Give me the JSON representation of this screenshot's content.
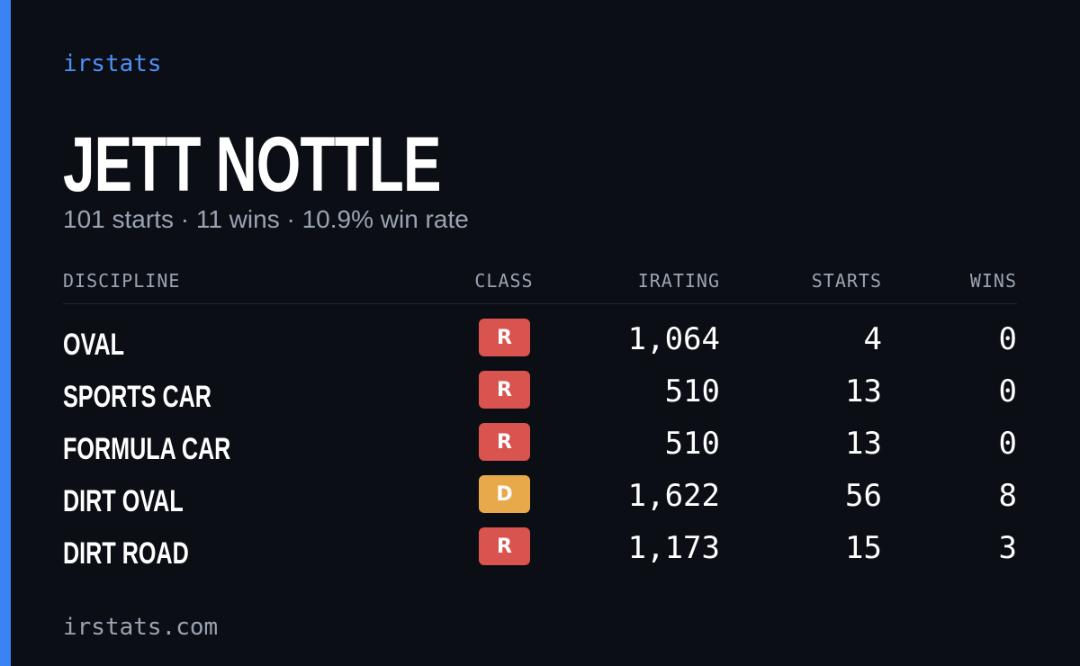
{
  "brand": "irstats",
  "name": "JETT NOTTLE",
  "subtitle": "101 starts · 11 wins · 10.9% win rate",
  "table": {
    "headers": [
      "DISCIPLINE",
      "CLASS",
      "IRATING",
      "STARTS",
      "WINS"
    ],
    "rows": [
      {
        "discipline": "OVAL",
        "class": "R",
        "class_color": "#d9534f",
        "irating": "1,064",
        "starts": "4",
        "wins": "0"
      },
      {
        "discipline": "SPORTS CAR",
        "class": "R",
        "class_color": "#d9534f",
        "irating": "510",
        "starts": "13",
        "wins": "0"
      },
      {
        "discipline": "FORMULA CAR",
        "class": "R",
        "class_color": "#d9534f",
        "irating": "510",
        "starts": "13",
        "wins": "0"
      },
      {
        "discipline": "DIRT OVAL",
        "class": "D",
        "class_color": "#e8a94a",
        "irating": "1,622",
        "starts": "56",
        "wins": "8"
      },
      {
        "discipline": "DIRT ROAD",
        "class": "R",
        "class_color": "#d9534f",
        "irating": "1,173",
        "starts": "15",
        "wins": "3"
      }
    ]
  },
  "footer": "irstats.com"
}
